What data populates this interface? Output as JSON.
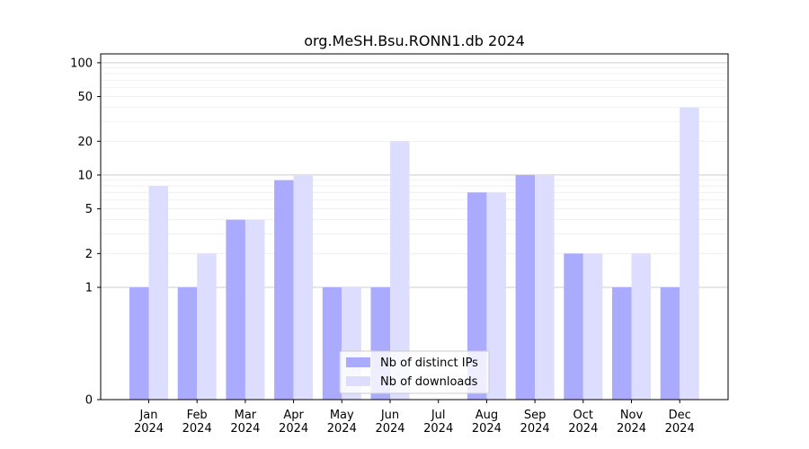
{
  "chart_data": {
    "type": "bar",
    "title": "org.MeSH.Bsu.RONN1.db 2024",
    "xlabel": "",
    "ylabel": "",
    "y_scale": "symlog",
    "ylim": [
      0,
      120
    ],
    "y_ticks": [
      0,
      1,
      2,
      5,
      10,
      20,
      50,
      100
    ],
    "y_tick_labels": [
      "0",
      "1",
      "2",
      "5",
      "10",
      "20",
      "50",
      "100"
    ],
    "categories": [
      "Jan\n2024",
      "Feb\n2024",
      "Mar\n2024",
      "Apr\n2024",
      "May\n2024",
      "Jun\n2024",
      "Jul\n2024",
      "Aug\n2024",
      "Sep\n2024",
      "Oct\n2024",
      "Nov\n2024",
      "Dec\n2024"
    ],
    "category_lines": [
      [
        "Jan",
        "2024"
      ],
      [
        "Feb",
        "2024"
      ],
      [
        "Mar",
        "2024"
      ],
      [
        "Apr",
        "2024"
      ],
      [
        "May",
        "2024"
      ],
      [
        "Jun",
        "2024"
      ],
      [
        "Jul",
        "2024"
      ],
      [
        "Aug",
        "2024"
      ],
      [
        "Sep",
        "2024"
      ],
      [
        "Oct",
        "2024"
      ],
      [
        "Nov",
        "2024"
      ],
      [
        "Dec",
        "2024"
      ]
    ],
    "series": [
      {
        "name": "Nb of distinct IPs",
        "color": "#aaaaff",
        "values": [
          1,
          1,
          4,
          9,
          1,
          1,
          0,
          7,
          10,
          2,
          1,
          1
        ]
      },
      {
        "name": "Nb of downloads",
        "color": "#ddddff",
        "values": [
          8,
          2,
          4,
          10,
          1,
          20,
          0,
          7,
          10,
          2,
          2,
          40
        ]
      }
    ],
    "grid": true,
    "legend_position": "lower-center"
  }
}
